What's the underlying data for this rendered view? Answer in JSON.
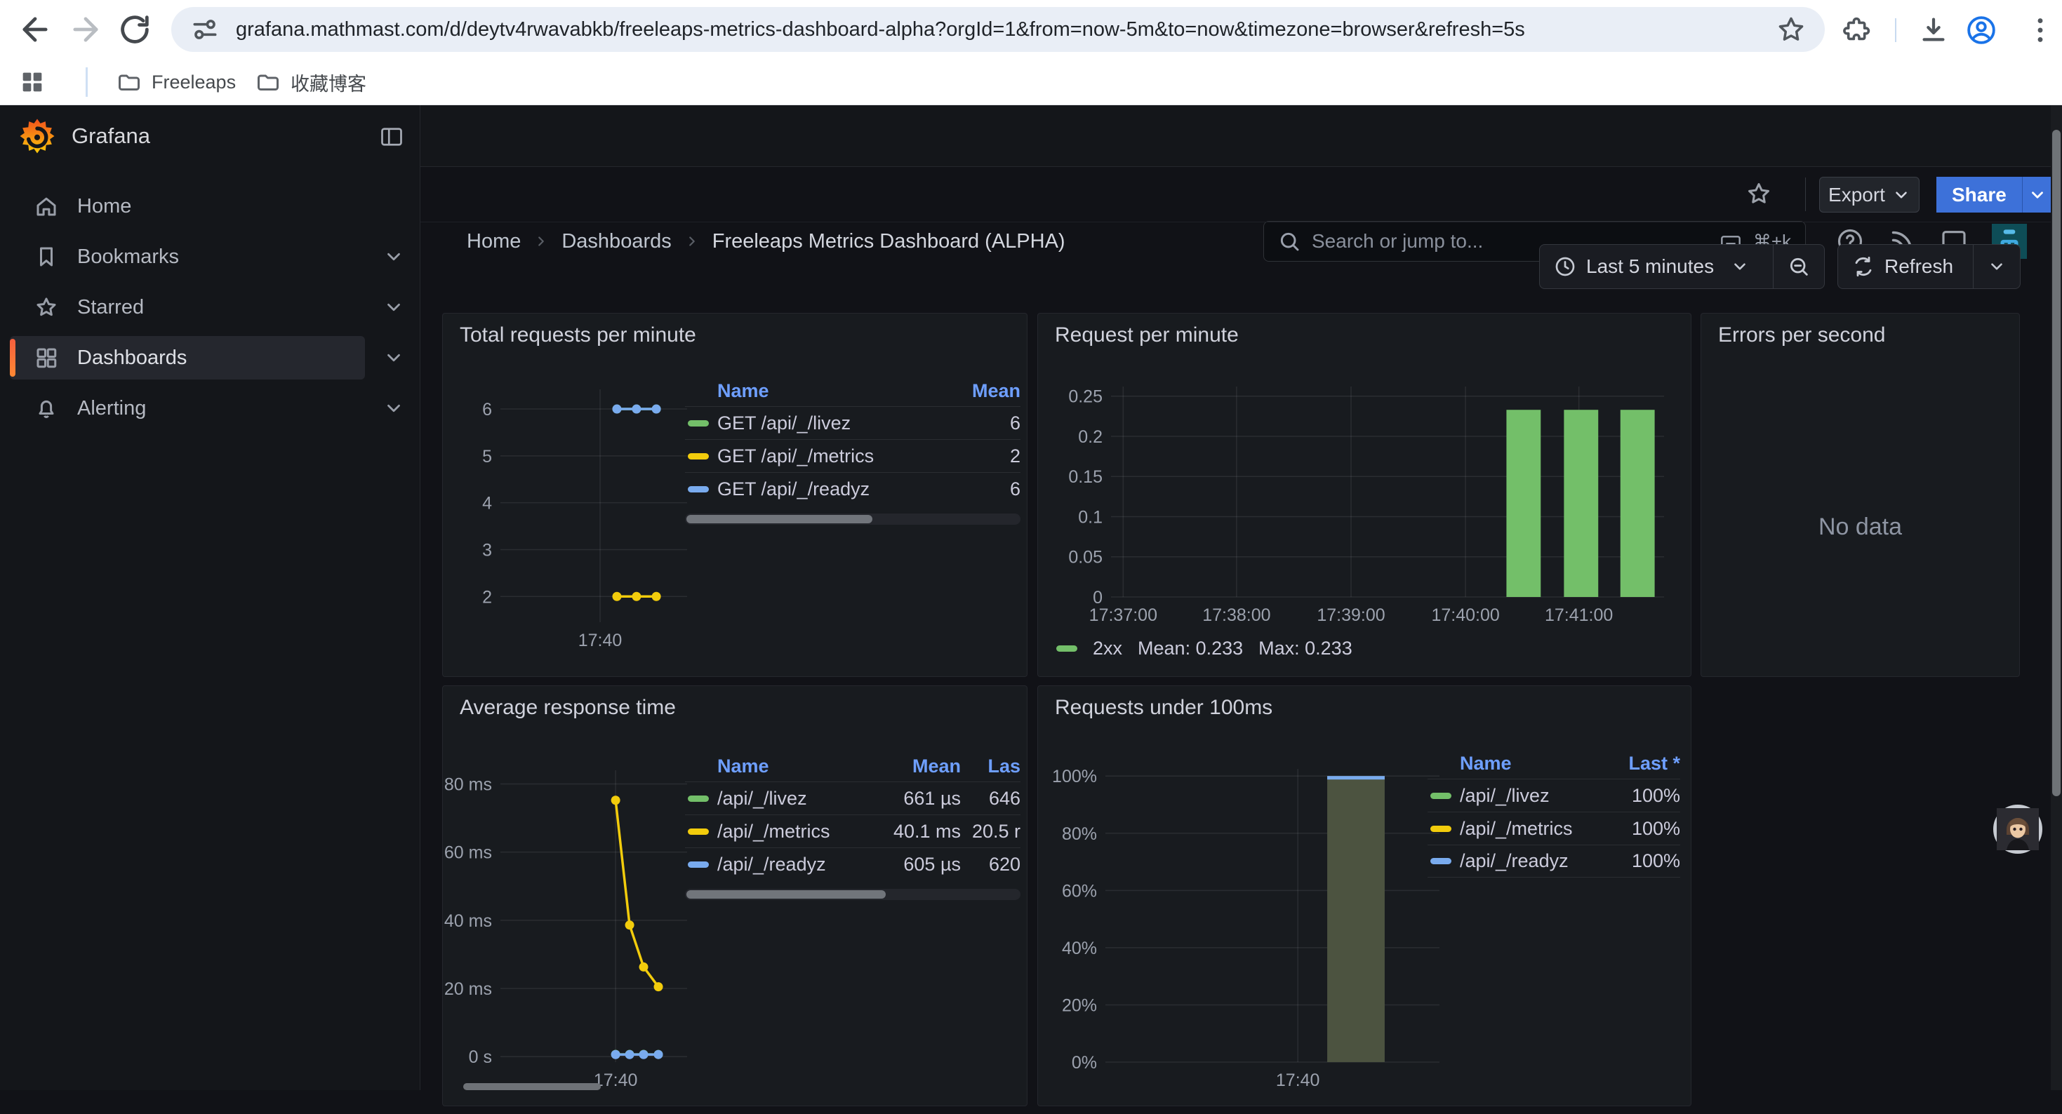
{
  "browser": {
    "url": "grafana.mathmast.com/d/deytv4rwavabkb/freeleaps-metrics-dashboard-alpha?orgId=1&from=now-5m&to=now&timezone=browser&refresh=5s",
    "bookmarks": [
      "Freeleaps",
      "收藏博客"
    ]
  },
  "header": {
    "brand": "Grafana",
    "breadcrumb": [
      "Home",
      "Dashboards",
      "Freeleaps Metrics Dashboard (ALPHA)"
    ],
    "search_placeholder": "Search or jump to...",
    "search_shortcut": "⌘+k"
  },
  "sidebar": {
    "items": [
      {
        "label": "Home"
      },
      {
        "label": "Bookmarks"
      },
      {
        "label": "Starred"
      },
      {
        "label": "Dashboards"
      },
      {
        "label": "Alerting"
      }
    ]
  },
  "toolbar": {
    "export_label": "Export",
    "share_label": "Share"
  },
  "controls": {
    "time_range": "Last 5 minutes",
    "refresh_label": "Refresh"
  },
  "panels": [
    {
      "title": "Total requests per minute"
    },
    {
      "title": "Request per minute"
    },
    {
      "title": "Errors per second",
      "no_data": "No data"
    },
    {
      "title": "Average response time"
    },
    {
      "title": "Requests under 100ms"
    }
  ],
  "colors": {
    "green": "#73BF69",
    "yellow": "#F2CC0C",
    "blue": "#79ABEE",
    "link_blue": "#6E9FFF",
    "accent_blue": "#3D71D9"
  },
  "legends": {
    "p1": {
      "headers": [
        "Name",
        "Mean"
      ],
      "widths": [
        "46px",
        "1fr",
        "110px"
      ],
      "rows": [
        {
          "color": "#73BF69",
          "cells": [
            "GET /api/_/livez",
            "6"
          ]
        },
        {
          "color": "#F2CC0C",
          "cells": [
            "GET /api/_/metrics",
            "2"
          ]
        },
        {
          "color": "#79ABEE",
          "cells": [
            "GET /api/_/readyz",
            "6"
          ]
        }
      ],
      "scrollbar": 0.56
    },
    "p2": {
      "series": "2xx",
      "mean": "Mean: 0.233",
      "max": "Max: 0.233",
      "color": "#73BF69"
    },
    "p4": {
      "headers": [
        "Name",
        "Mean",
        "Las"
      ],
      "widths": [
        "46px",
        "1fr",
        "130px",
        "85px"
      ],
      "rows": [
        {
          "color": "#73BF69",
          "cells": [
            "/api/_/livez",
            "661 µs",
            "646"
          ]
        },
        {
          "color": "#F2CC0C",
          "cells": [
            "/api/_/metrics",
            "40.1 ms",
            "20.5 r"
          ]
        },
        {
          "color": "#79ABEE",
          "cells": [
            "/api/_/readyz",
            "605 µs",
            "620"
          ]
        }
      ],
      "scrollbar": 0.6
    },
    "p5": {
      "headers": [
        "Name",
        "Last *"
      ],
      "widths": [
        "46px",
        "1fr",
        "120px"
      ],
      "rows": [
        {
          "color": "#73BF69",
          "cells": [
            "/api/_/livez",
            "100%"
          ]
        },
        {
          "color": "#F2CC0C",
          "cells": [
            "/api/_/metrics",
            "100%"
          ]
        },
        {
          "color": "#79ABEE",
          "cells": [
            "/api/_/readyz",
            "100%"
          ]
        }
      ]
    }
  },
  "chart_data": [
    {
      "id": "total-requests-per-minute",
      "type": "line",
      "title": "Total requests per minute",
      "ylim": [
        1.45,
        6.42
      ],
      "yticks": [
        {
          "v": 6,
          "label": "6"
        },
        {
          "v": 5,
          "label": "5"
        },
        {
          "v": 4,
          "label": "4"
        },
        {
          "v": 3,
          "label": "3"
        },
        {
          "v": 2,
          "label": "2"
        }
      ],
      "xticks": [
        {
          "f": 0.534,
          "label": "17:40"
        }
      ],
      "series": [
        {
          "name": "GET /api/_/livez",
          "color": "#73BF69",
          "points": [
            {
              "f": 0.624,
              "v": 6
            },
            {
              "f": 0.729,
              "v": 6
            },
            {
              "f": 0.835,
              "v": 6
            }
          ]
        },
        {
          "name": "GET /api/_/metrics",
          "color": "#F2CC0C",
          "points": [
            {
              "f": 0.624,
              "v": 2
            },
            {
              "f": 0.729,
              "v": 2
            },
            {
              "f": 0.835,
              "v": 2
            }
          ]
        },
        {
          "name": "GET /api/_/readyz",
          "color": "#79ABEE",
          "points": [
            {
              "f": 0.624,
              "v": 6
            },
            {
              "f": 0.729,
              "v": 6
            },
            {
              "f": 0.835,
              "v": 6
            }
          ]
        }
      ]
    },
    {
      "id": "request-per-minute",
      "type": "bar",
      "title": "Request per minute",
      "ylim": [
        0,
        0.262
      ],
      "yticks": [
        {
          "v": 0.25,
          "label": "0.25"
        },
        {
          "v": 0.2,
          "label": "0.2"
        },
        {
          "v": 0.15,
          "label": "0.15"
        },
        {
          "v": 0.1,
          "label": "0.1"
        },
        {
          "v": 0.05,
          "label": "0.05"
        },
        {
          "v": 0,
          "label": "0"
        }
      ],
      "xticks": [
        {
          "f": 0.022,
          "label": "17:37:00"
        },
        {
          "f": 0.227,
          "label": "17:38:00"
        },
        {
          "f": 0.434,
          "label": "17:39:00"
        },
        {
          "f": 0.641,
          "label": "17:40:00"
        },
        {
          "f": 0.846,
          "label": "17:41:00"
        }
      ],
      "bars": [
        {
          "f": 0.746,
          "v": 0.233,
          "w": 0.062,
          "color": "#73BF69"
        },
        {
          "f": 0.85,
          "v": 0.233,
          "w": 0.062,
          "color": "#73BF69"
        },
        {
          "f": 0.952,
          "v": 0.233,
          "w": 0.062,
          "color": "#73BF69"
        }
      ],
      "legend": {
        "series": "2xx",
        "mean": 0.233,
        "max": 0.233
      }
    },
    {
      "id": "average-response-time",
      "type": "line",
      "title": "Average response time",
      "ylim": [
        -1.6,
        84
      ],
      "yticks": [
        {
          "v": 80,
          "label": "80 ms"
        },
        {
          "v": 60,
          "label": "60 ms"
        },
        {
          "v": 40,
          "label": "40 ms"
        },
        {
          "v": 20,
          "label": "20 ms"
        },
        {
          "v": 0,
          "label": "0 s"
        }
      ],
      "xticks": [
        {
          "f": 0.617,
          "label": "17:40"
        }
      ],
      "series": [
        {
          "name": "/api/_/livez",
          "color": "#73BF69",
          "points": [
            {
              "f": 0.617,
              "v": 0.66
            },
            {
              "f": 0.692,
              "v": 0.66
            },
            {
              "f": 0.767,
              "v": 0.66
            },
            {
              "f": 0.846,
              "v": 0.65
            }
          ]
        },
        {
          "name": "/api/_/metrics",
          "color": "#F2CC0C",
          "points": [
            {
              "f": 0.617,
              "v": 75.2
            },
            {
              "f": 0.692,
              "v": 38.6
            },
            {
              "f": 0.767,
              "v": 26.3
            },
            {
              "f": 0.846,
              "v": 20.5
            }
          ]
        },
        {
          "name": "/api/_/readyz",
          "color": "#79ABEE",
          "points": [
            {
              "f": 0.617,
              "v": 0.61
            },
            {
              "f": 0.692,
              "v": 0.6
            },
            {
              "f": 0.767,
              "v": 0.6
            },
            {
              "f": 0.846,
              "v": 0.62
            }
          ]
        }
      ]
    },
    {
      "id": "requests-under-100ms",
      "type": "bar",
      "title": "Requests under 100ms",
      "ylim": [
        0,
        102.5
      ],
      "yticks": [
        {
          "v": 100,
          "label": "100%"
        },
        {
          "v": 80,
          "label": "80%"
        },
        {
          "v": 60,
          "label": "60%"
        },
        {
          "v": 40,
          "label": "40%"
        },
        {
          "v": 20,
          "label": "20%"
        },
        {
          "v": 0,
          "label": "0%"
        }
      ],
      "xticks": [
        {
          "f": 0.576,
          "label": "17:40"
        }
      ],
      "bars": [
        {
          "f": 0.75,
          "v": 100,
          "w": 0.172,
          "color": "#4C5340",
          "cap": "#79ABEE"
        }
      ]
    }
  ]
}
